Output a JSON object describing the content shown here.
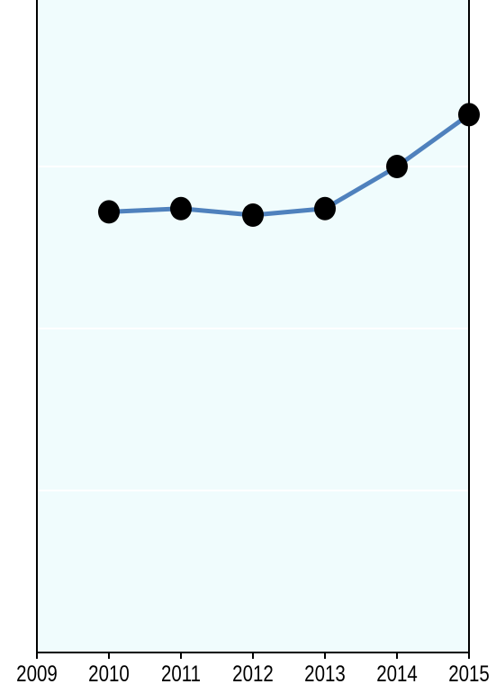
{
  "chart_data": {
    "type": "line",
    "title": "",
    "xlabel": "",
    "ylabel": "",
    "x": [
      2010,
      2011,
      2012,
      2013,
      2014,
      2015
    ],
    "series": [
      {
        "values": [
          0.68,
          0.685,
          0.675,
          0.685,
          0.75,
          0.83
        ]
      }
    ],
    "xlim": [
      2009,
      2015
    ],
    "ylim": [
      0,
      1
    ],
    "xticks": [
      "2009",
      "2010",
      "2011",
      "2012",
      "2013",
      "2014",
      "2015"
    ],
    "grid": "horizontal faint",
    "legend": "none",
    "colors": {
      "line": "#4f81bd",
      "marker": "#000000",
      "plot_background": "#f0fcfd",
      "axis": "#000000",
      "gridline": "#ffffff"
    }
  }
}
